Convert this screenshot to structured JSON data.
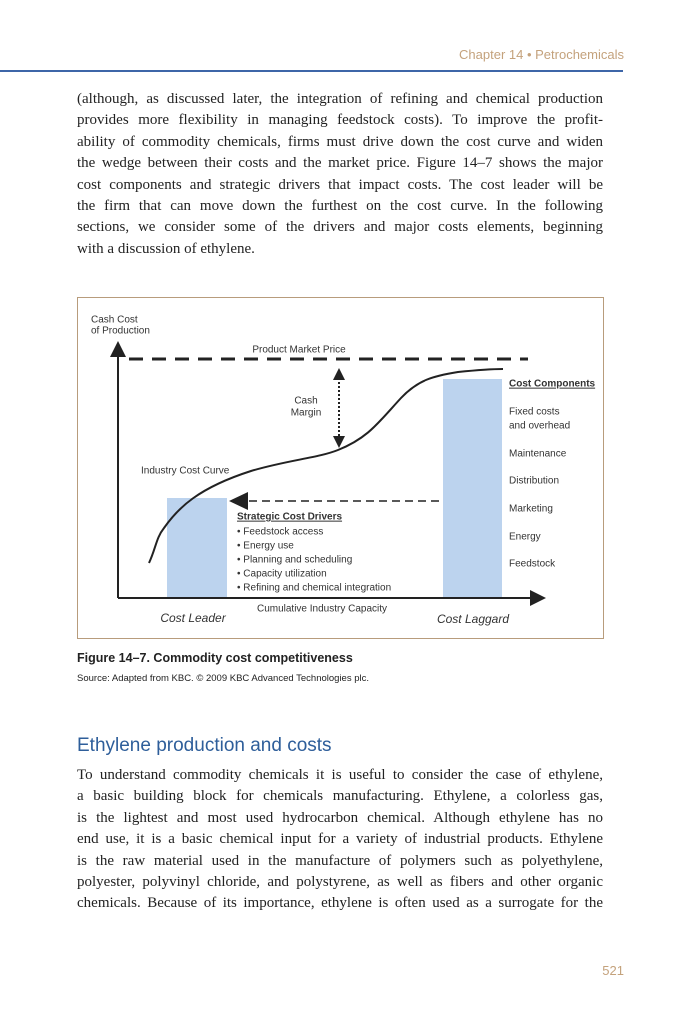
{
  "header": {
    "running_head": "Chapter 14 • Petrochemicals"
  },
  "intro": {
    "lines": [
      "(although, as discussed later, the integration of refining and chemical production",
      "provides more flexibility in managing feedstock costs). To improve the profit-",
      "ability of commodity chemicals, firms must drive down the cost curve and widen",
      "the wedge between their costs and the market price. Figure 14–7 shows the major",
      "cost components and strategic drivers that impact costs. The cost leader will be",
      "the firm that can move down the furthest on the cost curve. In the following",
      "sections, we consider some of the drivers and major costs elements, beginning",
      "with a discussion of ethylene."
    ]
  },
  "figure": {
    "y_axis_label": [
      "Cash Cost",
      "of Production"
    ],
    "market_price_label": "Product Market Price",
    "cash_margin_label": [
      "Cash",
      "Margin"
    ],
    "curve_label": "Industry Cost Curve",
    "drivers": {
      "title": "Strategic Cost Drivers",
      "items": [
        "• Feedstock access",
        "• Energy use",
        "• Planning and scheduling",
        "• Capacity utilization",
        "• Refining and chemical integration"
      ]
    },
    "x_axis_label": "Cumulative Industry Capacity",
    "leader_label": "Cost Leader",
    "laggard_label": "Cost Laggard",
    "components": {
      "title": "Cost Components",
      "items": [
        "Fixed costs",
        "and overhead",
        "Maintenance",
        "Distribution",
        "Marketing",
        "Energy",
        "Feedstock"
      ]
    }
  },
  "caption": {
    "title": "Figure 14–7. Commodity cost competitiveness",
    "source": "Source: Adapted from KBC. © 2009 KBC Advanced Technologies plc."
  },
  "section": {
    "heading": "Ethylene production and costs",
    "lines": [
      "To understand commodity chemicals it is useful to consider the case of ethylene,",
      "a basic building block for chemicals manufacturing. Ethylene, a colorless gas,",
      "is the lightest and most used hydrocarbon chemical. Although ethylene has no",
      "end use, it is a basic chemical input for a variety of industrial products. Ethylene",
      "is the raw material used in the manufacture of polymers such as polyethylene,",
      "polyester, polyvinyl chloride, and polystyrene, as well as fibers and other organic",
      "chemicals. Because of its importance, ethylene is often used as a surrogate for the"
    ]
  },
  "page_number": "521"
}
